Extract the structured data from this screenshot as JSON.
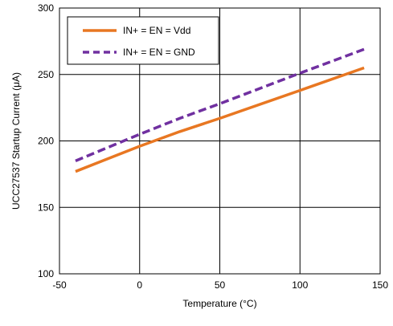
{
  "chart_data": {
    "type": "line",
    "xlabel": "Temperature (°C)",
    "ylabel": "UCC27537 Startup Current (μA)",
    "xlim": [
      -50,
      150
    ],
    "ylim": [
      100,
      300
    ],
    "x_ticks": [
      -50,
      0,
      50,
      100,
      150
    ],
    "y_ticks": [
      100,
      150,
      200,
      250,
      300
    ],
    "grid": true,
    "legend_position": "top-left",
    "series": [
      {
        "name": "IN+ = EN = Vdd",
        "color": "#e87722",
        "style": "solid",
        "x": [
          -40,
          0,
          25,
          50,
          100,
          140
        ],
        "y": [
          177,
          196,
          207,
          217,
          238,
          255
        ]
      },
      {
        "name": "IN+ = EN = GND",
        "color": "#7030a0",
        "style": "dashed",
        "x": [
          -40,
          0,
          25,
          50,
          100,
          140
        ],
        "y": [
          185,
          205,
          217,
          228,
          251,
          269
        ]
      }
    ]
  }
}
